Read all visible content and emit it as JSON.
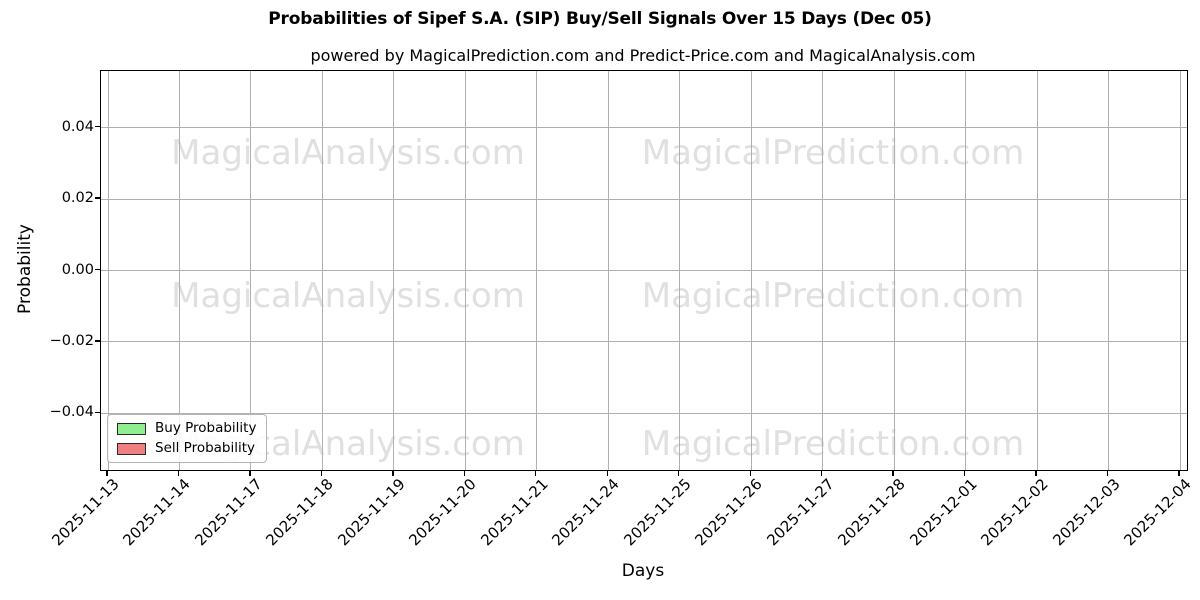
{
  "chart": {
    "title": "Probabilities of Sipef S.A. (SIP) Buy/Sell Signals Over 15 Days (Dec 05)",
    "subtitle": "powered by MagicalPrediction.com and Predict-Price.com and MagicalAnalysis.com",
    "xlabel": "Days",
    "ylabel": "Probability"
  },
  "axes": {
    "x_tick_labels": [
      "2025-11-13",
      "2025-11-14",
      "2025-11-17",
      "2025-11-18",
      "2025-11-19",
      "2025-11-20",
      "2025-11-21",
      "2025-11-24",
      "2025-11-25",
      "2025-11-26",
      "2025-11-27",
      "2025-11-28",
      "2025-12-01",
      "2025-12-02",
      "2025-12-03",
      "2025-12-04"
    ],
    "y_tick_labels": [
      "0.04",
      "0.02",
      "0.00",
      "−0.02",
      "−0.04"
    ]
  },
  "legend": {
    "items": [
      {
        "label": "Buy Probability",
        "color": "#90ee90"
      },
      {
        "label": "Sell Probability",
        "color": "#f08080"
      }
    ]
  },
  "watermarks": {
    "left_text": "MagicalAnalysis.com",
    "right_text": "MagicalPrediction.com",
    "color": "#e0e0e0"
  },
  "colors": {
    "grid": "#b0b0b0",
    "spine": "#000000",
    "buy": "#90ee90",
    "sell": "#f08080"
  },
  "chart_data": {
    "type": "line",
    "title": "Probabilities of Sipef S.A. (SIP) Buy/Sell Signals Over 15 Days (Dec 05)",
    "subtitle": "powered by MagicalPrediction.com and Predict-Price.com and MagicalAnalysis.com",
    "xlabel": "Days",
    "ylabel": "Probability",
    "x": [
      "2025-11-13",
      "2025-11-14",
      "2025-11-17",
      "2025-11-18",
      "2025-11-19",
      "2025-11-20",
      "2025-11-21",
      "2025-11-24",
      "2025-11-25",
      "2025-11-26",
      "2025-11-27",
      "2025-11-28",
      "2025-12-01",
      "2025-12-02",
      "2025-12-03",
      "2025-12-04"
    ],
    "series": [
      {
        "name": "Buy Probability",
        "color": "#90ee90",
        "values": []
      },
      {
        "name": "Sell Probability",
        "color": "#f08080",
        "values": []
      }
    ],
    "y_tick_values": [
      0.04,
      0.02,
      0.0,
      -0.02,
      -0.04
    ],
    "ylim": [
      -0.056,
      0.056
    ],
    "grid": true,
    "legend_position": "lower left",
    "note": "Plot area is empty: no data lines are visible, only gridlines, legend and watermarks"
  }
}
